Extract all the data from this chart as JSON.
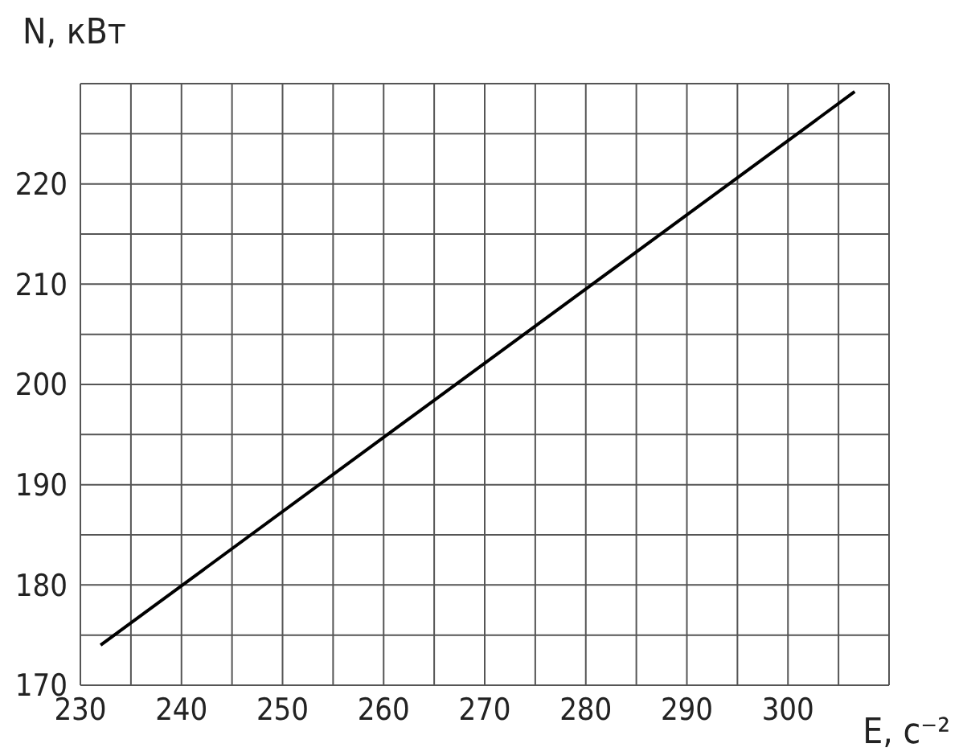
{
  "chart_data": {
    "type": "line",
    "xlabel": "E, с⁻²",
    "ylabel": "N, кВт",
    "series": [
      {
        "color": "#000000",
        "x": [
          232,
          306.6
        ],
        "values": [
          174,
          229.2
        ]
      }
    ],
    "xlim": [
      230,
      310
    ],
    "xticks": [
      230,
      {
        "value": 235,
        "label": null
      },
      240,
      {
        "value": 245,
        "label": null
      },
      250,
      {
        "value": 255,
        "label": null
      },
      260,
      {
        "value": 265,
        "label": null
      },
      270,
      {
        "value": 275,
        "label": null
      },
      280,
      {
        "value": 285,
        "label": null
      },
      290,
      {
        "value": 295,
        "label": null
      },
      300,
      {
        "value": 305,
        "label": null
      },
      {
        "value": 310,
        "label": null
      }
    ],
    "ylim": [
      170,
      230
    ],
    "yticks": [
      170,
      {
        "value": 175,
        "label": null
      },
      180,
      {
        "value": 185,
        "label": null
      },
      190,
      {
        "value": 195,
        "label": null
      },
      200,
      {
        "value": 205,
        "label": null
      },
      210,
      {
        "value": 215,
        "label": null
      },
      220,
      {
        "value": 225,
        "label": null
      },
      {
        "value": 230,
        "label": null
      }
    ],
    "grid": true,
    "marker": "none",
    "line_style": "solid"
  }
}
